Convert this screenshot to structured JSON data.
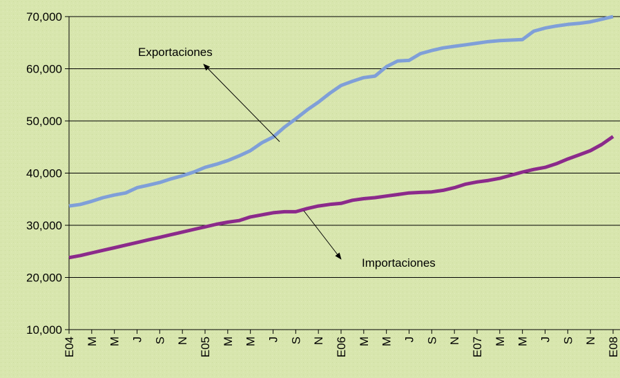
{
  "chart_data": {
    "type": "line",
    "categories": [
      "E04",
      null,
      "M",
      null,
      "M",
      null,
      "J",
      null,
      "S",
      null,
      "N",
      null,
      "E05",
      null,
      "M",
      null,
      "M",
      null,
      "J",
      null,
      "S",
      null,
      "N",
      null,
      "E06",
      null,
      "M",
      null,
      "M",
      null,
      "J",
      null,
      "S",
      null,
      "N",
      null,
      "E07",
      null,
      "M",
      null,
      "M",
      null,
      "J",
      null,
      "S",
      null,
      "N",
      null,
      "E08"
    ],
    "series": [
      {
        "name": "Exportaciones",
        "color": "#7f9fd8",
        "values": [
          33700,
          34000,
          34600,
          35300,
          35800,
          36200,
          37200,
          37700,
          38200,
          38900,
          39500,
          40200,
          41100,
          41700,
          42400,
          43300,
          44300,
          45800,
          46900,
          48800,
          50400,
          52100,
          53600,
          55300,
          56800,
          57600,
          58300,
          58600,
          60400,
          61500,
          61600,
          62900,
          63500,
          64000,
          64300,
          64600,
          64900,
          65200,
          65400,
          65500,
          65600,
          67200,
          67800,
          68200,
          68500,
          68700,
          69000,
          69500,
          70000
        ]
      },
      {
        "name": "Importaciones",
        "color": "#8b2a8b",
        "values": [
          23800,
          24200,
          24700,
          25200,
          25700,
          26200,
          26700,
          27200,
          27700,
          28200,
          28700,
          29200,
          29700,
          30200,
          30600,
          30900,
          31600,
          32000,
          32400,
          32600,
          32600,
          33200,
          33700,
          34000,
          34200,
          34800,
          35100,
          35300,
          35600,
          35900,
          36200,
          36300,
          36400,
          36700,
          37200,
          37900,
          38300,
          38600,
          39000,
          39600,
          40200,
          40700,
          41100,
          41800,
          42700,
          43500,
          44300,
          45500,
          47000
        ]
      }
    ],
    "ylim": [
      10000,
      70000
    ],
    "yticks": [
      {
        "value": 10000,
        "label": "10,000"
      },
      {
        "value": 20000,
        "label": "20,000"
      },
      {
        "value": 30000,
        "label": "30,000"
      },
      {
        "value": 40000,
        "label": "40,000"
      },
      {
        "value": 50000,
        "label": "50,000"
      },
      {
        "value": 60000,
        "label": "60,000"
      },
      {
        "value": 70000,
        "label": "70,000"
      }
    ],
    "grid": true
  }
}
